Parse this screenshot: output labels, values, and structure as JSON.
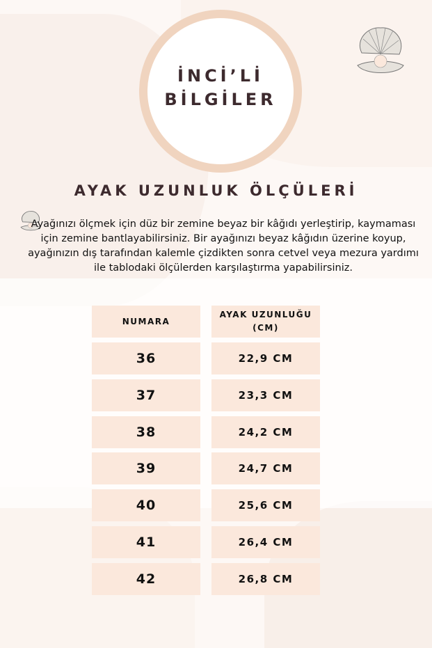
{
  "badge": {
    "line1": "İNCİ’Lİ",
    "line2": "BİLGİLER"
  },
  "title": "AYAK UZUNLUK ÖLÇÜLERİ",
  "instructions": "Ayağınızı ölçmek için düz bir zemine beyaz bir kâğıdı yerleştirip, kaymaması için zemine bantlayabilirsiniz. Bir ayağınızı beyaz kâğıdın üzerine koyup, ayağınızın dış tarafından kalemle çizdikten sonra cetvel veya mezura yardımı ile tablodaki ölçülerden karşılaştırma yapabilirsiniz.",
  "table": {
    "headers": [
      "NUMARA",
      "AYAK UZUNLUĞU (CM)"
    ],
    "rows": [
      [
        "36",
        "22,9 CM"
      ],
      [
        "37",
        "23,3 CM"
      ],
      [
        "38",
        "24,2 CM"
      ],
      [
        "39",
        "24,7 CM"
      ],
      [
        "40",
        "25,6 CM"
      ],
      [
        "41",
        "26,4 CM"
      ],
      [
        "42",
        "26,8 CM"
      ]
    ]
  },
  "colors": {
    "ring": "#f0d4bf",
    "cell": "#fbe8dc",
    "heading": "#3d2a2e"
  },
  "icons": [
    "pearl-shell-icon"
  ]
}
